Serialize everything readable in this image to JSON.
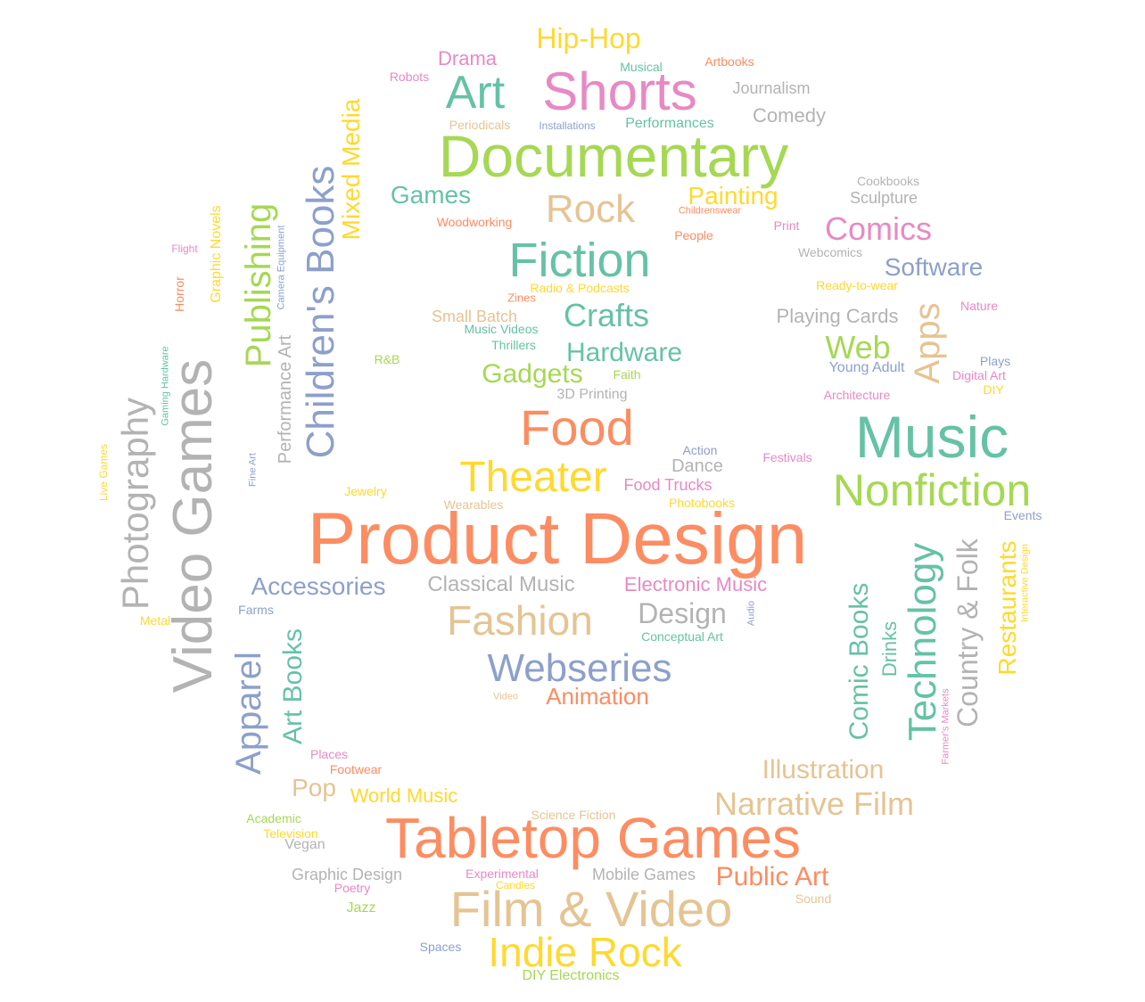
{
  "palette": {
    "teal": "#66c2a5",
    "orange": "#fc8d62",
    "blue": "#8da0cb",
    "pink": "#e78ac3",
    "green": "#a6d854",
    "yellow": "#ffd92f",
    "tan": "#e5c494",
    "gray": "#b3b3b3"
  },
  "words": [
    {
      "text": "Product Design",
      "color": "orange"
    },
    {
      "text": "Tabletop Games",
      "color": "orange"
    },
    {
      "text": "Documentary",
      "color": "green"
    },
    {
      "text": "Video Games",
      "color": "gray"
    },
    {
      "text": "Music",
      "color": "teal"
    },
    {
      "text": "Shorts",
      "color": "pink"
    },
    {
      "text": "Film & Video",
      "color": "tan"
    },
    {
      "text": "Food",
      "color": "orange"
    },
    {
      "text": "Fiction",
      "color": "teal"
    },
    {
      "text": "Nonfiction",
      "color": "green"
    },
    {
      "text": "Children's Books",
      "color": "blue"
    },
    {
      "text": "Photography",
      "color": "gray"
    },
    {
      "text": "Technology",
      "color": "teal"
    },
    {
      "text": "Theater",
      "color": "yellow"
    },
    {
      "text": "Indie Rock",
      "color": "yellow"
    },
    {
      "text": "Fashion",
      "color": "tan"
    },
    {
      "text": "Webseries",
      "color": "blue"
    },
    {
      "text": "Publishing",
      "color": "green"
    },
    {
      "text": "Apparel",
      "color": "blue"
    },
    {
      "text": "Art",
      "color": "teal"
    },
    {
      "text": "Rock",
      "color": "tan"
    },
    {
      "text": "Country & Folk",
      "color": "gray"
    },
    {
      "text": "Narrative Film",
      "color": "tan"
    },
    {
      "text": "Apps",
      "color": "tan"
    },
    {
      "text": "Web",
      "color": "green"
    },
    {
      "text": "Mixed Media",
      "color": "yellow"
    },
    {
      "text": "Comics",
      "color": "pink"
    },
    {
      "text": "Crafts",
      "color": "teal"
    },
    {
      "text": "Comic Books",
      "color": "teal"
    },
    {
      "text": "Hip-Hop",
      "color": "yellow"
    },
    {
      "text": "Design",
      "color": "gray"
    },
    {
      "text": "Hardware",
      "color": "teal"
    },
    {
      "text": "Illustration",
      "color": "tan"
    },
    {
      "text": "Public Art",
      "color": "orange"
    },
    {
      "text": "Accessories",
      "color": "blue"
    },
    {
      "text": "Classical Music",
      "color": "gray"
    },
    {
      "text": "Art Books",
      "color": "teal"
    },
    {
      "text": "Restaurants",
      "color": "yellow"
    },
    {
      "text": "Gadgets",
      "color": "green"
    },
    {
      "text": "Software",
      "color": "blue"
    },
    {
      "text": "Games",
      "color": "teal"
    },
    {
      "text": "Painting",
      "color": "yellow"
    },
    {
      "text": "Animation",
      "color": "orange"
    },
    {
      "text": "Electronic Music",
      "color": "pink"
    },
    {
      "text": "Performance Art",
      "color": "gray"
    },
    {
      "text": "Comedy",
      "color": "gray"
    },
    {
      "text": "Pop",
      "color": "tan"
    },
    {
      "text": "World Music",
      "color": "yellow"
    },
    {
      "text": "Playing Cards",
      "color": "gray"
    },
    {
      "text": "Drama",
      "color": "pink"
    },
    {
      "text": "Dance",
      "color": "gray"
    },
    {
      "text": "Drinks",
      "color": "teal"
    },
    {
      "text": "Food Trucks",
      "color": "pink"
    },
    {
      "text": "Journalism",
      "color": "gray"
    },
    {
      "text": "Sculpture",
      "color": "gray"
    },
    {
      "text": "Mobile Games",
      "color": "gray"
    },
    {
      "text": "Graphic Design",
      "color": "gray"
    },
    {
      "text": "Small Batch",
      "color": "tan"
    },
    {
      "text": "Performances",
      "color": "teal"
    },
    {
      "text": "Graphic Novels",
      "color": "yellow"
    },
    {
      "text": "Horror",
      "color": "orange"
    },
    {
      "text": "Radio & Podcasts",
      "color": "yellow"
    },
    {
      "text": "Photobooks",
      "color": "yellow"
    },
    {
      "text": "Jazz",
      "color": "green"
    },
    {
      "text": "Conceptual Art",
      "color": "teal"
    },
    {
      "text": "Ready-to-wear",
      "color": "yellow"
    },
    {
      "text": "Vegan",
      "color": "gray"
    },
    {
      "text": "3D Printing",
      "color": "gray"
    },
    {
      "text": "Young Adult",
      "color": "blue"
    },
    {
      "text": "Architecture",
      "color": "pink"
    },
    {
      "text": "Periodicals",
      "color": "tan"
    },
    {
      "text": "Woodworking",
      "color": "orange"
    },
    {
      "text": "Jewelry",
      "color": "yellow"
    },
    {
      "text": "Wearables",
      "color": "tan"
    },
    {
      "text": "Musical",
      "color": "teal"
    },
    {
      "text": "Installations",
      "color": "blue"
    },
    {
      "text": "Artbooks",
      "color": "orange"
    },
    {
      "text": "Robots",
      "color": "pink"
    },
    {
      "text": "Cookbooks",
      "color": "gray"
    },
    {
      "text": "Webcomics",
      "color": "gray"
    },
    {
      "text": "People",
      "color": "orange"
    },
    {
      "text": "Print",
      "color": "pink"
    },
    {
      "text": "Childrenswear",
      "color": "orange"
    },
    {
      "text": "Music Videos",
      "color": "teal"
    },
    {
      "text": "Thrillers",
      "color": "teal"
    },
    {
      "text": "Faith",
      "color": "green"
    },
    {
      "text": "Zines",
      "color": "orange"
    },
    {
      "text": "Nature",
      "color": "pink"
    },
    {
      "text": "Plays",
      "color": "blue"
    },
    {
      "text": "Digital Art",
      "color": "pink"
    },
    {
      "text": "DIY",
      "color": "yellow"
    },
    {
      "text": "Festivals",
      "color": "pink"
    },
    {
      "text": "Action",
      "color": "blue"
    },
    {
      "text": "Events",
      "color": "blue"
    },
    {
      "text": "Interactive Design",
      "color": "yellow"
    },
    {
      "text": "Audio",
      "color": "blue"
    },
    {
      "text": "Farmer's Markets",
      "color": "pink"
    },
    {
      "text": "Camera Equipment",
      "color": "blue"
    },
    {
      "text": "Gaming Hardware",
      "color": "teal"
    },
    {
      "text": "Fine Art",
      "color": "blue"
    },
    {
      "text": "Live Games",
      "color": "yellow"
    },
    {
      "text": "Flight",
      "color": "pink"
    },
    {
      "text": "R&B",
      "color": "green"
    },
    {
      "text": "Farms",
      "color": "blue"
    },
    {
      "text": "Metal",
      "color": "yellow"
    },
    {
      "text": "Places",
      "color": "pink"
    },
    {
      "text": "Footwear",
      "color": "orange"
    },
    {
      "text": "Academic",
      "color": "green"
    },
    {
      "text": "Television",
      "color": "yellow"
    },
    {
      "text": "Science Fiction",
      "color": "tan"
    },
    {
      "text": "Experimental",
      "color": "pink"
    },
    {
      "text": "Candles",
      "color": "yellow"
    },
    {
      "text": "Poetry",
      "color": "pink"
    },
    {
      "text": "Sound",
      "color": "tan"
    },
    {
      "text": "Spaces",
      "color": "blue"
    },
    {
      "text": "DIY Electronics",
      "color": "green"
    },
    {
      "text": "Video",
      "color": "tan"
    }
  ]
}
